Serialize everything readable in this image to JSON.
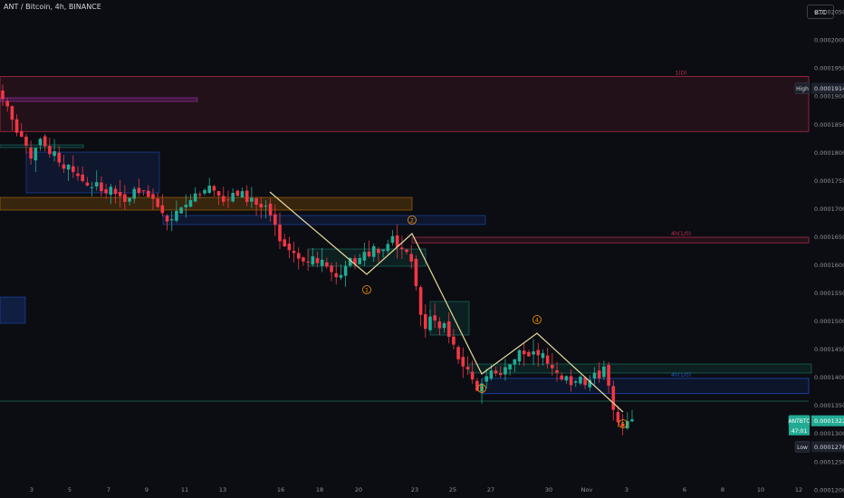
{
  "header": {
    "title": "ANT / Bitcoin, 4h, BINANCE"
  },
  "unit_button": "BTC",
  "chart_data": {
    "type": "candlestick",
    "title": "ANT / Bitcoin, 4h, BINANCE",
    "ylim": [
      0.000119,
      0.0002055
    ],
    "y_ticks": [
      "0.00020500",
      "0.00020000",
      "0.00019500",
      "0.00019000",
      "0.00018500",
      "0.00018000",
      "0.00017500",
      "0.00017000",
      "0.00016500",
      "0.00016000",
      "0.00015500",
      "0.00015000",
      "0.00014500",
      "0.00014000",
      "0.00013500",
      "0.00013000",
      "0.00012500",
      "0.00012000"
    ],
    "x_ticks": [
      "3",
      "5",
      "7",
      "9",
      "11",
      "13",
      "16",
      "18",
      "20",
      "23",
      "25",
      "27",
      "30",
      "Nov",
      "3",
      "6",
      "8",
      "10",
      "12"
    ],
    "close_path": [
      0.0001895,
      0.0001882,
      0.0001858,
      0.0001835,
      0.0001828,
      0.0001812,
      0.0001789,
      0.0001808,
      0.0001824,
      0.0001811,
      0.0001797,
      0.0001802,
      0.0001782,
      0.0001771,
      0.0001778,
      0.0001765,
      0.0001758,
      0.0001749,
      0.0001741,
      0.0001738,
      0.0001747,
      0.0001731,
      0.0001727,
      0.0001739,
      0.0001726,
      0.0001722,
      0.0001712,
      0.0001719,
      0.0001735,
      0.0001728,
      0.0001731,
      0.0001721,
      0.0001717,
      0.0001703,
      0.0001692,
      0.0001677,
      0.0001681,
      0.0001696,
      0.0001702,
      0.0001707,
      0.0001715,
      0.0001727,
      0.0001724,
      0.0001733,
      0.0001741,
      0.0001732,
      0.0001723,
      0.0001712,
      0.0001715,
      0.0001728,
      0.0001723,
      0.0001731,
      0.0001712,
      0.0001719,
      0.0001707,
      0.0001702,
      0.0001705,
      0.0001688,
      0.0001671,
      0.0001642,
      0.0001633,
      0.0001626,
      0.0001621,
      0.0001611,
      0.0001606,
      0.0001604,
      0.0001615,
      0.0001603,
      0.0001609,
      0.0001597,
      0.0001587,
      0.0001578,
      0.0001582,
      0.0001598,
      0.0001612,
      0.0001601,
      0.0001612,
      0.0001623,
      0.0001615,
      0.0001633,
      0.0001621,
      0.0001627,
      0.0001637,
      0.0001651,
      0.0001632,
      0.0001628,
      0.0001623,
      0.0001606,
      0.0001562,
      0.0001511,
      0.0001486,
      0.0001508,
      0.0001501,
      0.0001487,
      0.0001496,
      0.0001472,
      0.0001458,
      0.0001432,
      0.0001419,
      0.0001414,
      0.0001396,
      0.0001376,
      0.0001389,
      0.0001402,
      0.0001412,
      0.0001407,
      0.0001404,
      0.0001418,
      0.0001423,
      0.0001432,
      0.0001448,
      0.0001441,
      0.0001437,
      0.0001446,
      0.0001439,
      0.0001443,
      0.0001424,
      0.0001416,
      0.0001408,
      0.0001396,
      0.0001402,
      0.0001386,
      0.0001393,
      0.0001401,
      0.0001386,
      0.0001395,
      0.0001408,
      0.0001398,
      0.0001419,
      0.0001385,
      0.0001342,
      0.000132,
      0.0001312,
      0.0001322,
      0.0001325
    ],
    "horizontal_zones": [
      {
        "label": "1(D)",
        "top": 0.0001935,
        "bottom": 0.0001837,
        "color": "#f2365c"
      },
      {
        "label": "4h(1/0)",
        "top": 0.0001649,
        "bottom": 0.0001639,
        "color": "#f2365c"
      },
      {
        "label": "4h(1/0)",
        "top": 0.0001398,
        "bottom": 0.0001371,
        "color": "#2962ff"
      }
    ],
    "wave_labels": [
      "1",
      "2",
      "3",
      "4",
      "5"
    ],
    "price_labels": [
      {
        "text": "High",
        "price": "0.00019140",
        "value": 0.0001914
      },
      {
        "text": "ANTBTC",
        "price": "0.00013225",
        "sub": "47:01",
        "value": 0.00013225
      },
      {
        "text": "Low",
        "price": "0.00012763",
        "value": 0.00012763
      }
    ],
    "colors": {
      "up": "#22ab94",
      "down": "#f23645",
      "wave": "#e8dc9a",
      "background": "#0b0d12"
    },
    "grid": false
  }
}
